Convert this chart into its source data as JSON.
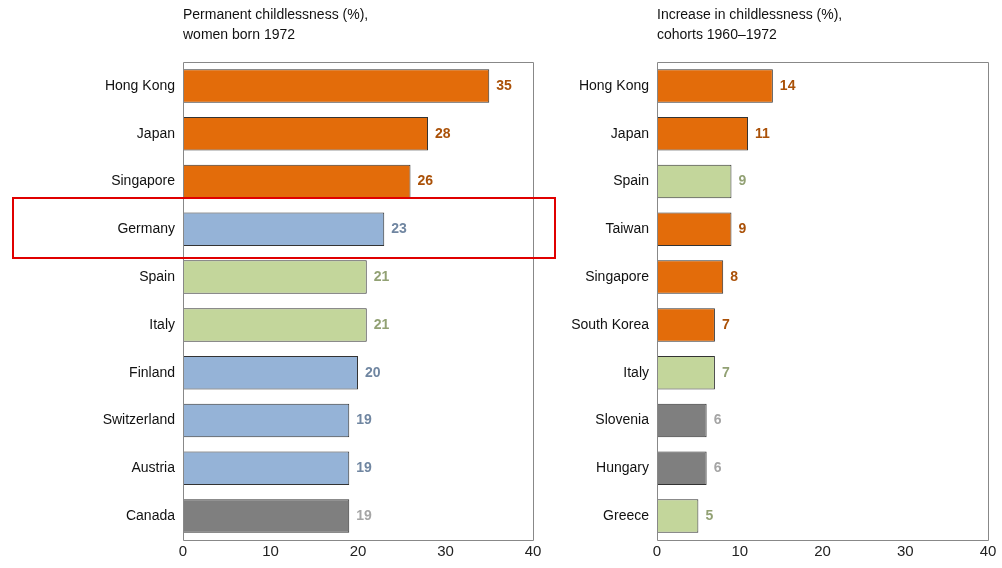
{
  "chart_data": [
    {
      "type": "bar",
      "orientation": "horizontal",
      "title": "Permanent childlessness (%), women born 1972",
      "categories": [
        "Hong Kong",
        "Japan",
        "Singapore",
        "Germany",
        "Spain",
        "Italy",
        "Finland",
        "Switzerland",
        "Austria",
        "Canada"
      ],
      "values": [
        35,
        28,
        26,
        23,
        21,
        21,
        20,
        19,
        19,
        19
      ],
      "colors": [
        "#e36c0a",
        "#e36c0a",
        "#e36c0a",
        "#95b3d7",
        "#c3d69b",
        "#c3d69b",
        "#95b3d7",
        "#95b3d7",
        "#95b3d7",
        "#7f7f7f"
      ],
      "xlim": [
        0,
        40
      ],
      "xticks": [
        0,
        10,
        20,
        30,
        40
      ],
      "grid": false,
      "legend": false,
      "data_labels": true
    },
    {
      "type": "bar",
      "orientation": "horizontal",
      "title": "Increase in childlessness (%), cohorts 1960–1972",
      "categories": [
        "Hong Kong",
        "Japan",
        "Spain",
        "Taiwan",
        "Singapore",
        "South Korea",
        "Italy",
        "Slovenia",
        "Hungary",
        "Greece"
      ],
      "values": [
        14,
        11,
        9,
        9,
        8,
        7,
        7,
        6,
        6,
        5
      ],
      "colors": [
        "#e36c0a",
        "#e36c0a",
        "#c3d69b",
        "#e36c0a",
        "#e36c0a",
        "#e36c0a",
        "#c3d69b",
        "#7f7f7f",
        "#7f7f7f",
        "#c3d69b"
      ],
      "xlim": [
        0,
        40
      ],
      "xticks": [
        0,
        10,
        20,
        30,
        40
      ],
      "grid": false,
      "legend": false,
      "data_labels": true
    }
  ]
}
